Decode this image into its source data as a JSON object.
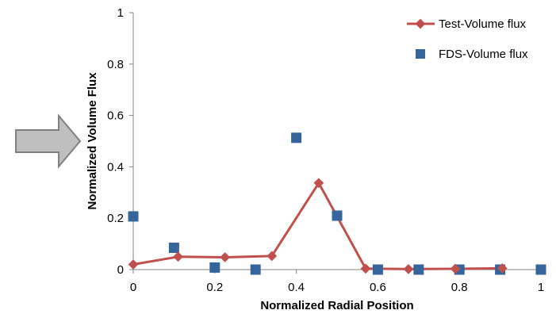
{
  "chart_data": {
    "type": "line",
    "title": "",
    "xlabel": "Normalized Radial Position",
    "ylabel": "Normalized Volume Flux",
    "xlim": [
      0,
      1
    ],
    "ylim": [
      0,
      1
    ],
    "x_ticks": [
      "0",
      "0.2",
      "0.4",
      "0.6",
      "0.8",
      "1"
    ],
    "y_ticks": [
      "0",
      "0.2",
      "0.4",
      "0.6",
      "0.8",
      "1"
    ],
    "grid": false,
    "legend_position": "top-right",
    "series": [
      {
        "name": "Test-Volume flux",
        "style": "line-with-diamond-markers",
        "color": "#c0504d",
        "x": [
          0,
          0.11,
          0.225,
          0.34,
          0.455,
          0.57,
          0.675,
          0.79,
          0.905
        ],
        "y": [
          0.02,
          0.05,
          0.048,
          0.053,
          0.337,
          0.004,
          0.002,
          0.003,
          0.005
        ]
      },
      {
        "name": "FDS-Volume flux",
        "style": "square-markers",
        "color": "#35659b",
        "x": [
          0,
          0.1,
          0.2,
          0.3,
          0.4,
          0.5,
          0.6,
          0.7,
          0.8,
          0.9,
          1.0
        ],
        "y": [
          0.207,
          0.085,
          0.008,
          0.0,
          0.513,
          0.21,
          0.0,
          0.0,
          0.0,
          0.0,
          0.0
        ]
      }
    ]
  },
  "decoration": {
    "arrow_color": "#bfbfbf",
    "arrow_stroke": "#808080"
  }
}
